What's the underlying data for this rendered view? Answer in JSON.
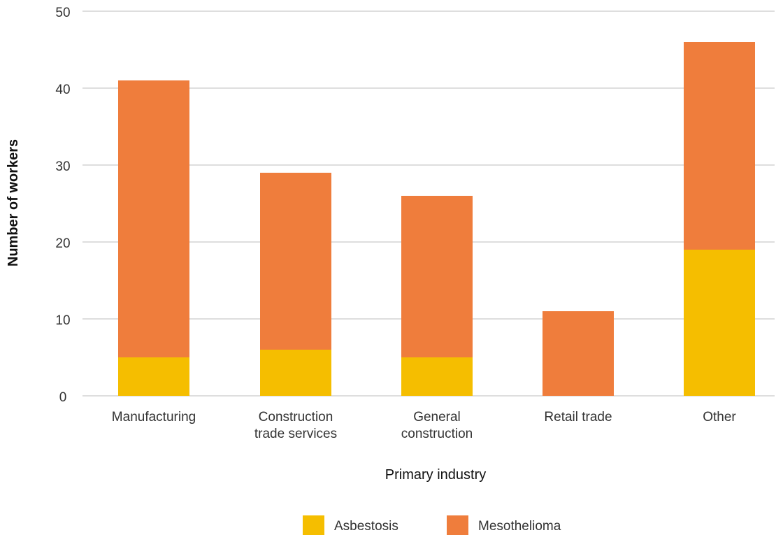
{
  "chart_data": {
    "type": "bar",
    "stacked": true,
    "categories": [
      [
        "Manufacturing"
      ],
      [
        "Construction",
        "trade services"
      ],
      [
        "General",
        "construction"
      ],
      [
        "Retail trade"
      ],
      [
        "Other"
      ]
    ],
    "series": [
      {
        "name": "Asbestosis",
        "values": [
          5,
          6,
          5,
          0,
          19
        ],
        "color": "#f5be00"
      },
      {
        "name": "Mesothelioma",
        "values": [
          36,
          23,
          21,
          11,
          27
        ],
        "color": "#ef7d3c"
      }
    ],
    "xlabel": "Primary industry",
    "ylabel": "Number of workers",
    "ylim": [
      0,
      50
    ],
    "yticks": [
      0,
      10,
      20,
      30,
      40,
      50
    ],
    "grid": true,
    "legend": "bottom-center"
  }
}
